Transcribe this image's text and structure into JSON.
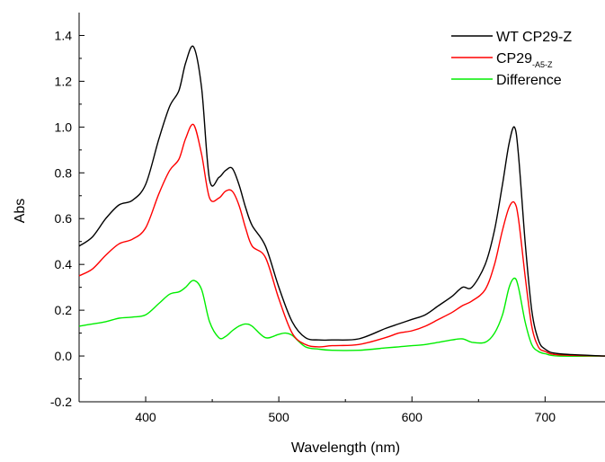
{
  "chart_data": {
    "type": "line",
    "xlabel": "Wavelength (nm)",
    "ylabel": "Abs",
    "xlim": [
      350,
      745
    ],
    "ylim": [
      -0.2,
      1.5
    ],
    "xticks": [
      400,
      500,
      600,
      700
    ],
    "xtick_labels": [
      "400",
      "500",
      "600",
      "700"
    ],
    "yticks": [
      -0.2,
      0.0,
      0.2,
      0.4,
      0.6,
      0.8,
      1.0,
      1.2,
      1.4
    ],
    "ytick_labels": [
      "-0.2",
      "0.0",
      "0.2",
      "0.4",
      "0.6",
      "0.8",
      "1.0",
      "1.2",
      "1.4"
    ],
    "grid": false,
    "legend_position": "top-right",
    "series": [
      {
        "name": "WT CP29-Z",
        "name_main": "WT CP29-Z",
        "name_sub": "",
        "color": "#000000",
        "x": [
          350,
          360,
          370,
          380,
          390,
          400,
          410,
          418,
          425,
          430,
          436,
          442,
          448,
          455,
          460,
          465,
          470,
          475,
          480,
          490,
          500,
          510,
          520,
          530,
          540,
          560,
          580,
          590,
          600,
          610,
          620,
          630,
          638,
          645,
          655,
          662,
          668,
          673,
          677,
          680,
          685,
          690,
          695,
          700,
          710,
          745
        ],
        "y": [
          0.48,
          0.52,
          0.6,
          0.66,
          0.68,
          0.75,
          0.95,
          1.09,
          1.16,
          1.28,
          1.35,
          1.17,
          0.77,
          0.78,
          0.81,
          0.82,
          0.75,
          0.65,
          0.57,
          0.48,
          0.3,
          0.15,
          0.08,
          0.07,
          0.07,
          0.075,
          0.12,
          0.14,
          0.16,
          0.18,
          0.22,
          0.26,
          0.3,
          0.3,
          0.4,
          0.55,
          0.75,
          0.93,
          1.0,
          0.88,
          0.5,
          0.2,
          0.07,
          0.03,
          0.01,
          0.0
        ]
      },
      {
        "name": "CP29-A5-Z",
        "name_main": "CP29",
        "name_sub": "-A5-Z",
        "color": "#ff0000",
        "x": [
          350,
          360,
          370,
          380,
          390,
          400,
          410,
          418,
          425,
          430,
          436,
          442,
          448,
          455,
          460,
          465,
          470,
          475,
          480,
          490,
          500,
          510,
          520,
          530,
          540,
          560,
          580,
          590,
          600,
          610,
          620,
          630,
          638,
          645,
          655,
          662,
          668,
          673,
          677,
          680,
          685,
          690,
          695,
          700,
          710,
          745
        ],
        "y": [
          0.35,
          0.38,
          0.44,
          0.49,
          0.51,
          0.56,
          0.71,
          0.81,
          0.86,
          0.95,
          1.01,
          0.88,
          0.69,
          0.69,
          0.72,
          0.72,
          0.66,
          0.56,
          0.48,
          0.43,
          0.25,
          0.1,
          0.05,
          0.04,
          0.045,
          0.05,
          0.08,
          0.1,
          0.11,
          0.13,
          0.16,
          0.19,
          0.22,
          0.24,
          0.29,
          0.4,
          0.55,
          0.65,
          0.67,
          0.6,
          0.35,
          0.13,
          0.04,
          0.02,
          0.005,
          0.0
        ]
      },
      {
        "name": "Difference",
        "name_main": "Difference",
        "name_sub": "",
        "color": "#00ee00",
        "x": [
          350,
          360,
          370,
          380,
          390,
          400,
          410,
          418,
          425,
          430,
          436,
          442,
          448,
          455,
          460,
          465,
          470,
          475,
          480,
          490,
          500,
          505,
          510,
          520,
          530,
          540,
          560,
          580,
          590,
          600,
          610,
          620,
          630,
          638,
          645,
          655,
          662,
          668,
          673,
          677,
          680,
          685,
          690,
          695,
          700,
          710,
          745
        ],
        "y": [
          0.13,
          0.14,
          0.15,
          0.165,
          0.17,
          0.18,
          0.23,
          0.27,
          0.28,
          0.3,
          0.33,
          0.29,
          0.15,
          0.08,
          0.085,
          0.11,
          0.13,
          0.14,
          0.13,
          0.08,
          0.095,
          0.1,
          0.09,
          0.04,
          0.03,
          0.025,
          0.025,
          0.035,
          0.04,
          0.045,
          0.05,
          0.06,
          0.07,
          0.075,
          0.06,
          0.06,
          0.1,
          0.18,
          0.3,
          0.34,
          0.3,
          0.15,
          0.05,
          0.02,
          0.01,
          0.0,
          0.0
        ]
      }
    ]
  }
}
